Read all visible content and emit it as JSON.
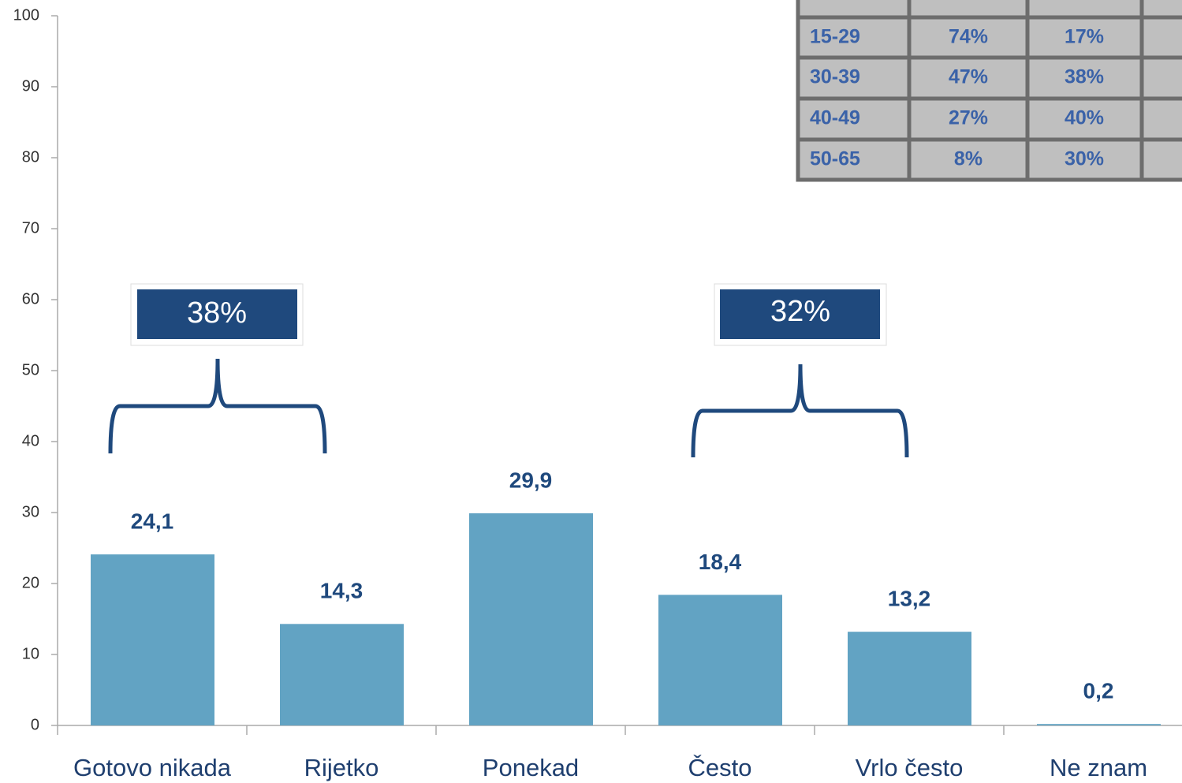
{
  "chart_data": {
    "type": "bar",
    "categories": [
      "Gotovo nikada",
      "Rijetko",
      "Ponekad",
      "Često",
      "Vrlo često",
      "Ne znam"
    ],
    "values": [
      24.1,
      14.3,
      29.9,
      18.4,
      13.2,
      0.2
    ],
    "value_labels": [
      "24,1",
      "14,3",
      "29,9",
      "18,4",
      "13,2",
      "0,2"
    ],
    "color": "#62a3c3",
    "ylim": [
      0,
      100
    ],
    "yticks": [
      0,
      10,
      20,
      30,
      40,
      50,
      60,
      70,
      80,
      90,
      100
    ],
    "annotations": [
      "38%",
      "32%"
    ]
  },
  "table": {
    "rows": [
      [
        "15-29",
        "74%",
        "17%"
      ],
      [
        "30-39",
        "47%",
        "38%"
      ],
      [
        "40-49",
        "27%",
        "40%"
      ],
      [
        "50-65",
        "8%",
        "30%"
      ]
    ]
  }
}
